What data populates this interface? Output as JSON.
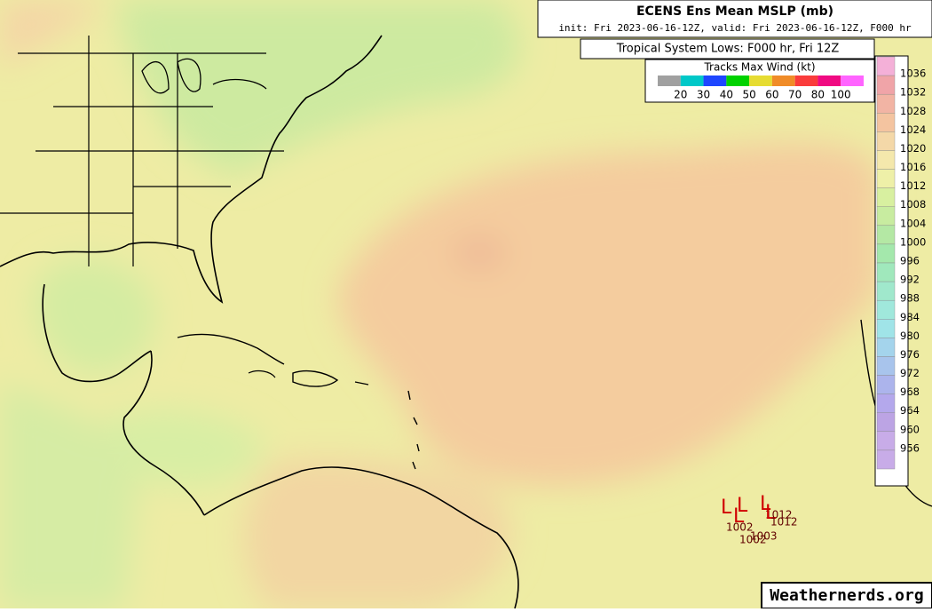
{
  "header": {
    "title": "ECENS Ens Mean MSLP (mb)",
    "subtitle": "init: Fri 2023-06-16-12Z, valid: Fri 2023-06-16-12Z, F000 hr"
  },
  "lows_header": "Tropical System Lows: F000 hr, Fri 12Z",
  "wind_legend": {
    "title": "Tracks Max Wind (kt)",
    "colors": [
      "#a0a0a0",
      "#00c8c8",
      "#1e46ff",
      "#00d200",
      "#e6dc32",
      "#f08c28",
      "#fa3c3c",
      "#f00a82",
      "#ff64ff"
    ],
    "labels": [
      20,
      30,
      40,
      50,
      60,
      70,
      80,
      100
    ]
  },
  "colorbar": {
    "levels": [
      1036,
      1032,
      1028,
      1024,
      1020,
      1016,
      1012,
      1008,
      1004,
      1000,
      996,
      992,
      988,
      984,
      980,
      976,
      972,
      968,
      964,
      960,
      956
    ],
    "colors": [
      "#f4b0d8",
      "#f0a4a8",
      "#f2b4a4",
      "#f4c4a0",
      "#f4d8a8",
      "#f4e8ac",
      "#eef0a8",
      "#d8f0a0",
      "#c8eca0",
      "#b4e8a4",
      "#a4e8ac",
      "#a0e8bc",
      "#a0e8cc",
      "#a0e8dc",
      "#a0e4e8",
      "#a4d4ec",
      "#a8c4ec",
      "#acb4ec",
      "#b4a8ec",
      "#bca4e4",
      "#c8ace8"
    ]
  },
  "lows": [
    {
      "symbol": "L",
      "pressure": "1012"
    },
    {
      "symbol": "L",
      "pressure": "1012"
    },
    {
      "symbol": "L",
      "pressure": "1002"
    },
    {
      "symbol": "L",
      "pressure": "1003"
    },
    {
      "symbol": "L",
      "pressure": "1002"
    }
  ],
  "credit": "Weathernerds.org"
}
